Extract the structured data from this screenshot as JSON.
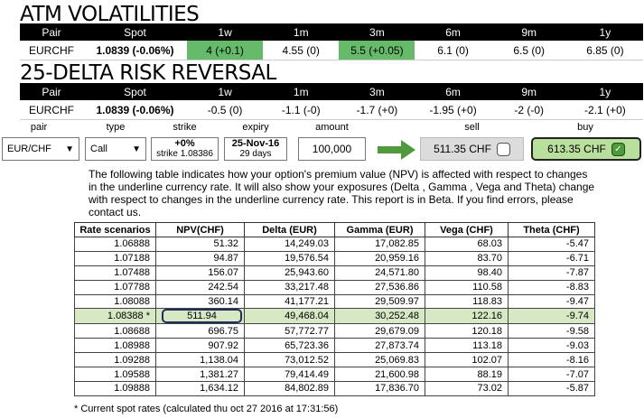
{
  "atm": {
    "title": "ATM VOLATILITIES",
    "headers": [
      "Pair",
      "Spot",
      "1w",
      "1m",
      "3m",
      "6m",
      "9m",
      "1y"
    ],
    "row": {
      "pair": "EURCHF",
      "spot": "1.0839 (-0.06%)",
      "values": [
        "4 (+0.1)",
        "4.55 (0)",
        "5.5 (+0.05)",
        "6.1 (0)",
        "6.5 (0)",
        "6.85 (0)"
      ]
    },
    "highlight_color": "#66bb6a"
  },
  "risk_reversal": {
    "title": "25-DELTA RISK REVERSAL",
    "headers": [
      "Pair",
      "Spot",
      "1w",
      "1m",
      "3m",
      "6m",
      "9m",
      "1y"
    ],
    "row": {
      "pair": "EURCHF",
      "spot": "1.0839 (-0.06%)",
      "values": [
        "-0.5 (0)",
        "-1.1 (-0)",
        "-1.7 (+0)",
        "-1.95 (+0)",
        "-2 (-0)",
        "-2.1 (+0)"
      ]
    }
  },
  "pricer": {
    "labels": {
      "pair": "pair",
      "type": "type",
      "strike": "strike",
      "expiry": "expiry",
      "amount": "amount",
      "sell": "sell",
      "buy": "buy"
    },
    "pair_value": "EUR/CHF",
    "type_value": "Call",
    "strike_pct": "+0%",
    "strike_value": "strike 1.08386",
    "expiry_date": "25-Nov-16",
    "expiry_days": "29 days",
    "amount_value": "100,000",
    "sell_price": "511.35 CHF",
    "buy_price": "613.35 CHF",
    "buy_checked_mark": "✓",
    "arrow_icon": "right-arrow-icon",
    "arrow_color": "#4f9a3c"
  },
  "description": "The following table indicates how your option's premium value (NPV) is affected with respect to changes in the underline currency rate. It will also show your exposures (Delta , Gamma , Vega and Theta) change with respect to changes in the underline currency rate. This report is in Beta. If you find errors, please contact us.",
  "scenario_table": {
    "headers": [
      "Rate scenarios",
      "NPV(CHF)",
      "Delta (EUR)",
      "Gamma (EUR)",
      "Vega (CHF)",
      "Theta (CHF)"
    ],
    "rows": [
      [
        "1.06888",
        "51.32",
        "14,249.03",
        "17,082.85",
        "68.03",
        "-5.47"
      ],
      [
        "1.07188",
        "94.87",
        "19,576.54",
        "20,959.16",
        "83.70",
        "-6.71"
      ],
      [
        "1.07488",
        "156.07",
        "25,943.60",
        "24,571.80",
        "98.40",
        "-7.87"
      ],
      [
        "1.07788",
        "242.54",
        "33,217.48",
        "27,536.86",
        "110.58",
        "-8.83"
      ],
      [
        "1.08088",
        "360.14",
        "41,177.21",
        "29,509.97",
        "118.83",
        "-9.47"
      ],
      [
        "1.08388 *",
        "511.94",
        "49,468.04",
        "30,252.48",
        "122.16",
        "-9.74"
      ],
      [
        "1.08688",
        "696.75",
        "57,772.77",
        "29,679.09",
        "120.18",
        "-9.58"
      ],
      [
        "1.08988",
        "907.92",
        "65,723.36",
        "27,873.74",
        "113.18",
        "-9.03"
      ],
      [
        "1.09288",
        "1,138.04",
        "73,012.52",
        "25,069.83",
        "102.07",
        "-8.16"
      ],
      [
        "1.09588",
        "1,381.27",
        "79,414.49",
        "21,600.98",
        "88.19",
        "-7.07"
      ],
      [
        "1.09888",
        "1,634.12",
        "84,802.89",
        "17,836.70",
        "73.02",
        "-5.87"
      ]
    ],
    "current_row_color": "#d6e8c4"
  },
  "footnote": "* Current spot rates (calculated thu oct 27 2016 at 17:31:56)"
}
